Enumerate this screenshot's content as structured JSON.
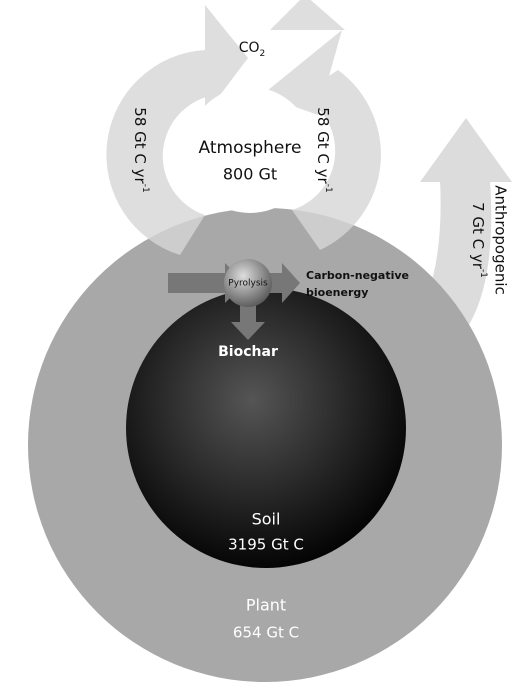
{
  "co2": {
    "text": "CO",
    "sub": "2"
  },
  "flux_left": {
    "text": "58 Gt C yr",
    "sup": "-1"
  },
  "flux_right": {
    "text": "58 Gt C yr",
    "sup": "-1"
  },
  "atmosphere": {
    "label": "Atmosphere",
    "amount": "800 Gt"
  },
  "anthropogenic": {
    "label": "Anthropogenic",
    "text": "7 Gt C yr",
    "sup": "-1"
  },
  "pyrolysis": "Pyrolysis",
  "bioenergy": {
    "line1": "Carbon-negative",
    "line2": "bioenergy"
  },
  "biochar": "Biochar",
  "soil": {
    "label": "Soil",
    "amount": "3195 Gt C"
  },
  "plant": {
    "label": "Plant",
    "amount": "654 Gt C"
  }
}
